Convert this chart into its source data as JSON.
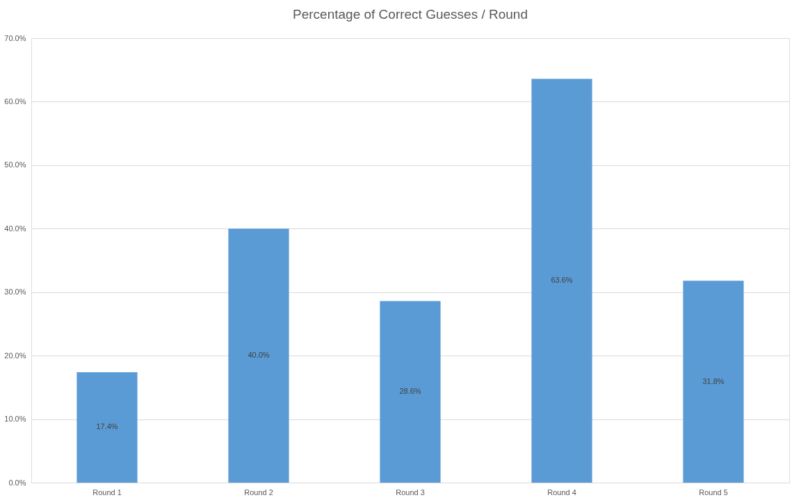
{
  "chart_data": {
    "type": "bar",
    "title": "Percentage of Correct Guesses / Round",
    "categories": [
      "Round 1",
      "Round 2",
      "Round 3",
      "Round 4",
      "Round 5"
    ],
    "values": [
      17.4,
      40.0,
      28.6,
      63.6,
      31.8
    ],
    "value_labels": [
      "17.4%",
      "40.0%",
      "28.6%",
      "63.6%",
      "31.8%"
    ],
    "color": "#5b9bd5",
    "ylim": [
      0,
      70
    ],
    "yticks": [
      {
        "value": 0,
        "label": "0.0%"
      },
      {
        "value": 10,
        "label": "10.0%"
      },
      {
        "value": 20,
        "label": "20.0%"
      },
      {
        "value": 30,
        "label": "30.0%"
      },
      {
        "value": 40,
        "label": "40.0%"
      },
      {
        "value": 50,
        "label": "50.0%"
      },
      {
        "value": 60,
        "label": "60.0%"
      },
      {
        "value": 70,
        "label": "70.0%"
      }
    ],
    "grid": "y"
  }
}
